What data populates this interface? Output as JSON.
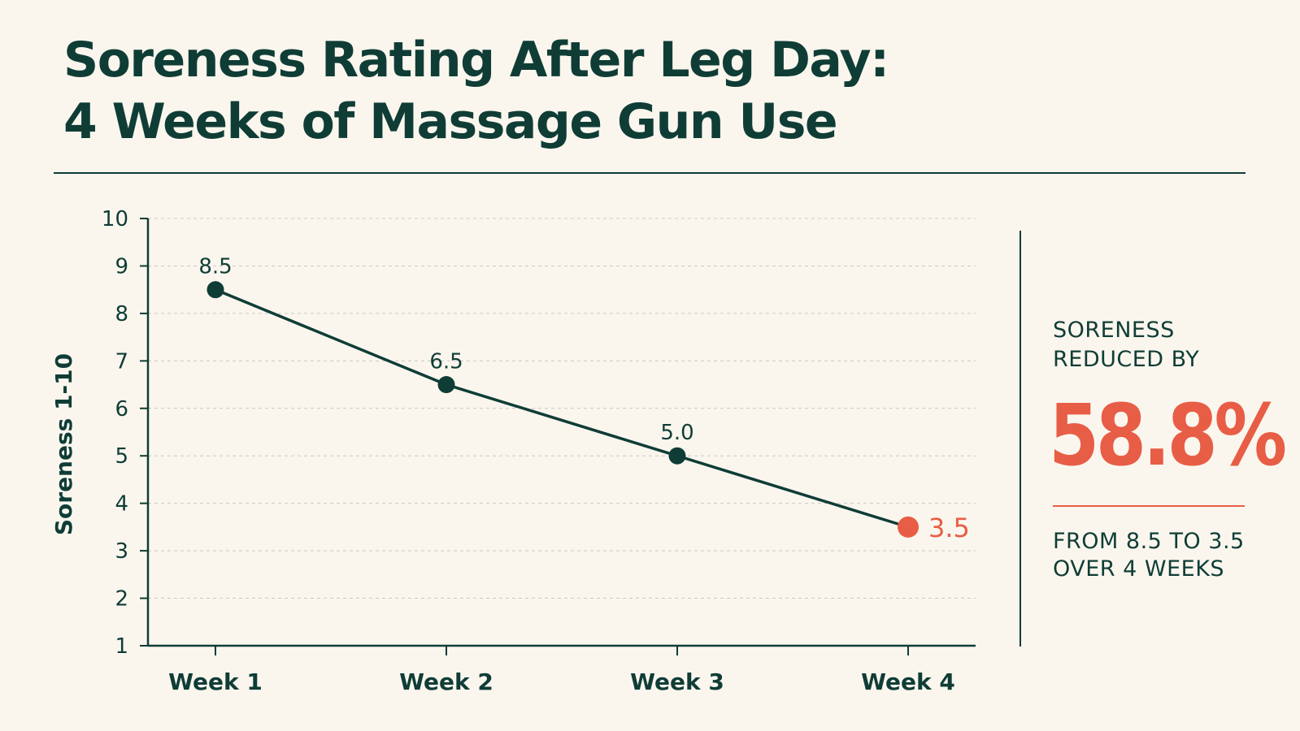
{
  "title_lines": [
    "Soreness Rating After Leg Day:",
    "4 Weeks of Massage Gun Use"
  ],
  "callout": {
    "label_lines": [
      "SORENESS",
      "REDUCED BY"
    ],
    "value": "58.8%",
    "note_lines": [
      "FROM 8.5 TO 3.5",
      "OVER 4 WEEKS"
    ]
  },
  "colors": {
    "background": "#faf6ee",
    "primary": "#0f3d36",
    "accent": "#e85d45",
    "grid": "#c9c9c4"
  },
  "chart_data": {
    "type": "line",
    "categories": [
      "Week 1",
      "Week 2",
      "Week 3",
      "Week 4"
    ],
    "series": [
      {
        "values": [
          8.5,
          6.5,
          5.0,
          3.5
        ]
      }
    ],
    "data_labels": [
      "8.5",
      "6.5",
      "5.0",
      "3.5"
    ],
    "highlight_last_point": true,
    "title": "",
    "xlabel": "",
    "ylabel": "Soreness 1-10",
    "ylim": [
      1,
      10
    ],
    "yticks": [
      1,
      2,
      3,
      4,
      5,
      6,
      7,
      8,
      9,
      10
    ],
    "grid": "horizontal dashed",
    "legend": "none"
  }
}
